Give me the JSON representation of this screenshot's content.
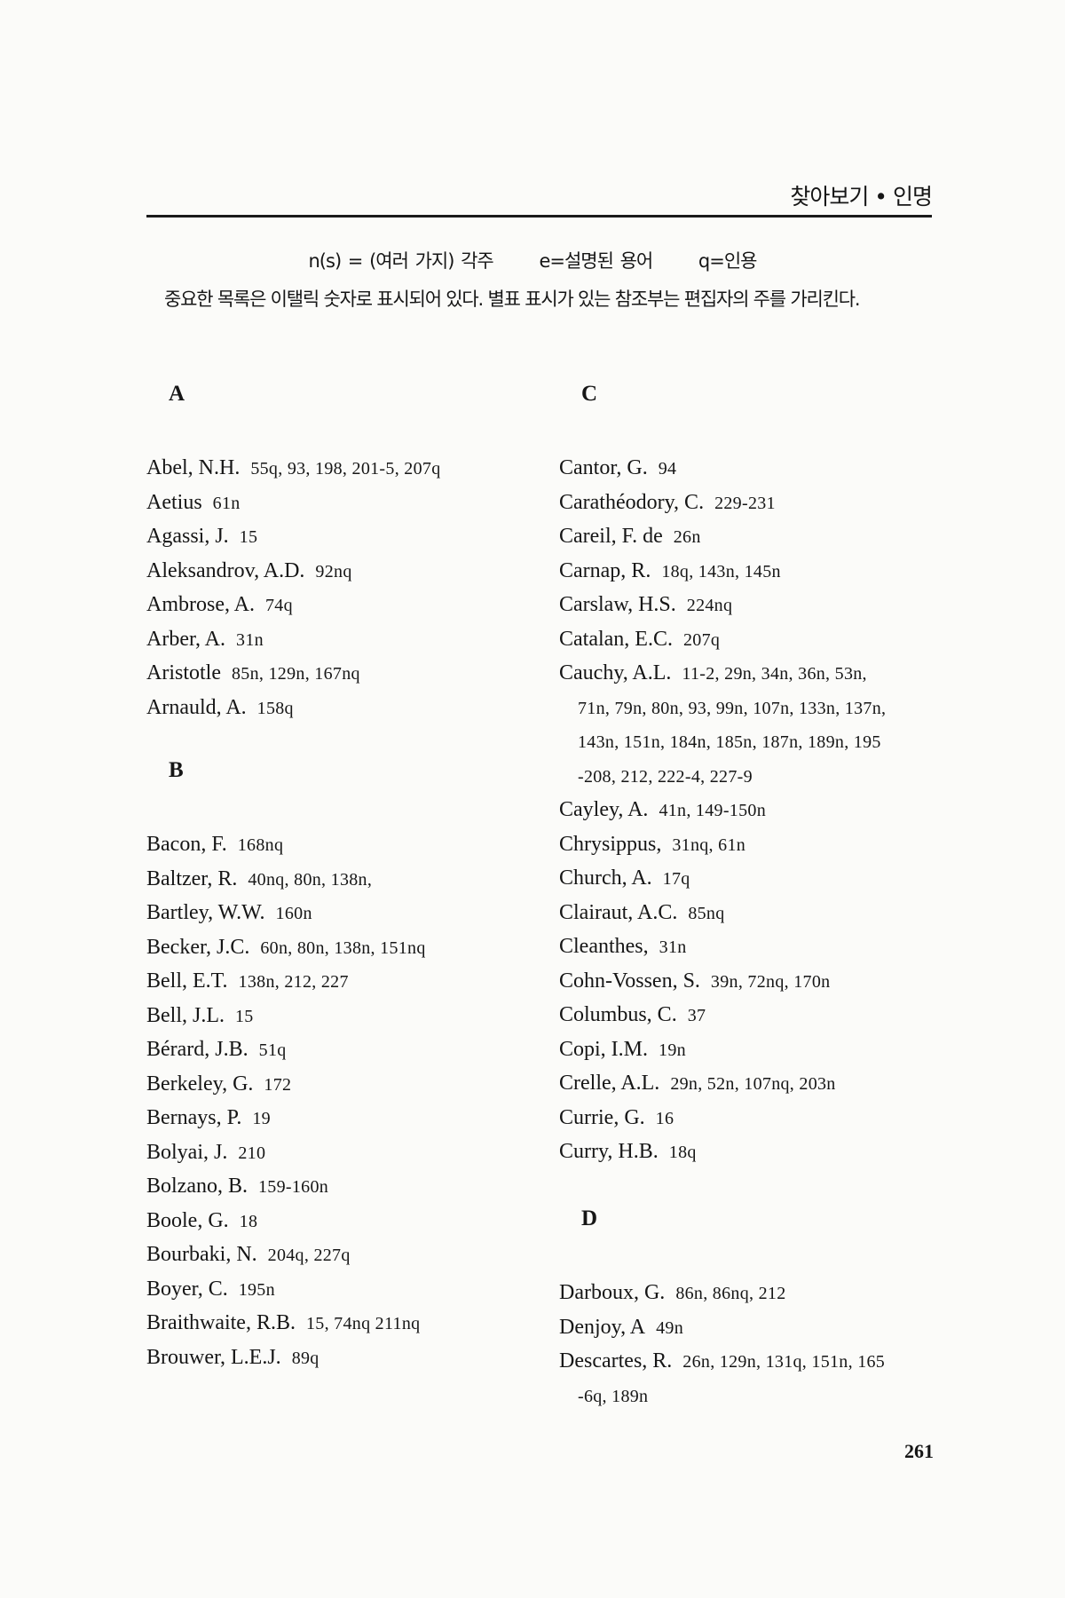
{
  "running_head": "찾아보기 • 인명",
  "legend": [
    "n(s) = (여러 가지) 각주",
    "e=설명된 용어",
    "q=인용"
  ],
  "note": "중요한 목록은 이탤릭 숫자로 표시되어 있다. 별표 표시가 있는 참조부는 편집자의 주를 가리킨다.",
  "page_number": "261",
  "columns": [
    {
      "sections": [
        {
          "letter": "A",
          "entries": [
            {
              "name": "Abel, N.H.",
              "pages": "55q, 93, 198, 201-5, 207q"
            },
            {
              "name": "Aetius",
              "pages": "61n"
            },
            {
              "name": "Agassi, J.",
              "pages": "15"
            },
            {
              "name": "Aleksandrov, A.D.",
              "pages": "92nq"
            },
            {
              "name": "Ambrose, A.",
              "pages": "74q"
            },
            {
              "name": "Arber, A.",
              "pages": "31n"
            },
            {
              "name": "Aristotle",
              "pages": "85n, 129n, 167nq"
            },
            {
              "name": "Arnauld, A.",
              "pages": "158q"
            }
          ]
        },
        {
          "letter": "B",
          "entries": [
            {
              "name": "Bacon, F.",
              "pages": "168nq"
            },
            {
              "name": "Baltzer, R.",
              "pages": "40nq, 80n, 138n,"
            },
            {
              "name": "Bartley, W.W.",
              "pages": "160n"
            },
            {
              "name": "Becker, J.C.",
              "pages": "60n, 80n, 138n, 151nq"
            },
            {
              "name": "Bell, E.T.",
              "pages": "138n, 212, 227"
            },
            {
              "name": "Bell, J.L.",
              "pages": "15"
            },
            {
              "name": "Bérard, J.B.",
              "pages": "51q"
            },
            {
              "name": "Berkeley, G.",
              "pages": "172"
            },
            {
              "name": "Bernays, P.",
              "pages": "19"
            },
            {
              "name": "Bolyai, J.",
              "pages": "210"
            },
            {
              "name": "Bolzano, B.",
              "pages": "159-160n"
            },
            {
              "name": "Boole, G.",
              "pages": "18"
            },
            {
              "name": "Bourbaki, N.",
              "pages": "204q, 227q"
            },
            {
              "name": "Boyer, C.",
              "pages": "195n"
            },
            {
              "name": "Braithwaite, R.B.",
              "pages": "15, 74nq 211nq"
            },
            {
              "name": "Brouwer, L.E.J.",
              "pages": "89q"
            }
          ]
        }
      ]
    },
    {
      "sections": [
        {
          "letter": "C",
          "entries": [
            {
              "name": "Cantor, G.",
              "pages": "94"
            },
            {
              "name": "Carathéodory, C.",
              "pages": "229-231"
            },
            {
              "name": "Careil, F. de",
              "pages": "26n"
            },
            {
              "name": "Carnap, R.",
              "pages": "18q, 143n, 145n"
            },
            {
              "name": "Carslaw, H.S.",
              "pages": "224nq"
            },
            {
              "name": "Catalan, E.C.",
              "pages": "207q"
            },
            {
              "name": "Cauchy, A.L.",
              "pages": "11-2, 29n, 34n, 36n, 53n,",
              "continued": [
                "71n, 79n, 80n, 93, 99n, 107n, 133n, 137n,",
                "143n, 151n, 184n, 185n, 187n, 189n, 195",
                "-208, 212, 222-4, 227-9"
              ]
            },
            {
              "name": "Cayley, A.",
              "pages": "41n, 149-150n"
            },
            {
              "name": "Chrysippus,",
              "pages": "31nq, 61n"
            },
            {
              "name": "Church, A.",
              "pages": "17q"
            },
            {
              "name": "Clairaut, A.C.",
              "pages": "85nq"
            },
            {
              "name": "Cleanthes,",
              "pages": "31n"
            },
            {
              "name": "Cohn-Vossen, S.",
              "pages": "39n, 72nq, 170n"
            },
            {
              "name": "Columbus, C.",
              "pages": "37"
            },
            {
              "name": "Copi, I.M.",
              "pages": "19n"
            },
            {
              "name": "Crelle, A.L.",
              "pages": "29n, 52n, 107nq, 203n"
            },
            {
              "name": "Currie, G.",
              "pages": "16"
            },
            {
              "name": "Curry, H.B.",
              "pages": "18q"
            }
          ]
        },
        {
          "letter": "D",
          "entries": [
            {
              "name": "Darboux, G.",
              "pages": "86n, 86nq, 212"
            },
            {
              "name": "Denjoy, A",
              "pages": "49n"
            },
            {
              "name": "Descartes, R.",
              "pages": "26n, 129n, 131q, 151n, 165",
              "continued": [
                "-6q, 189n"
              ]
            }
          ]
        }
      ]
    }
  ]
}
